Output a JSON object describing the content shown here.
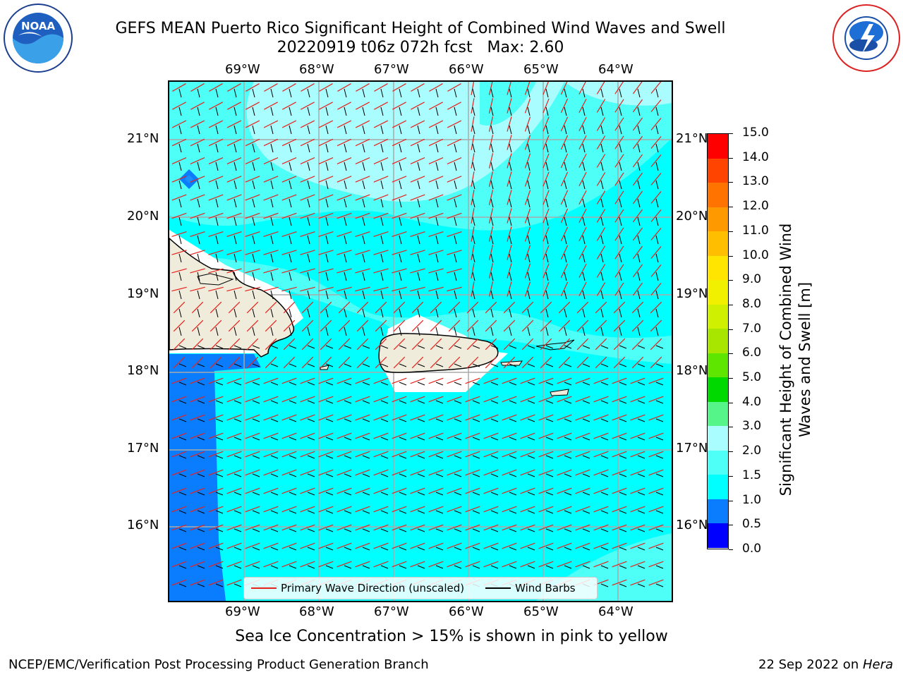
{
  "title": {
    "line1": "GEFS MEAN Puerto Rico Significant Height of Combined Wind Waves and Swell",
    "line2": "20220919 t06z 072h fcst   Max: 2.60"
  },
  "logos": {
    "left": "noaa-logo",
    "right": "nws-logo"
  },
  "map": {
    "lon_labels": [
      "69°W",
      "68°W",
      "67°W",
      "66°W",
      "65°W",
      "64°W"
    ],
    "lat_labels": [
      "21°N",
      "20°N",
      "19°N",
      "18°N",
      "17°N",
      "16°N"
    ],
    "fill_colors": {
      "band_0_5_1_0": "#0a7dff",
      "band_1_0_1_5": "#00ffff",
      "band_1_5_2_0": "#4dfff7",
      "band_2_0_3_0": "#aafdff",
      "land": "#efecdc",
      "white": "#ffffff",
      "wave_arrow": "#e8201a",
      "wind_barb": "#000000"
    }
  },
  "legend": {
    "wave_label": "Primary Wave Direction (unscaled)",
    "barb_label": "Wind Barbs"
  },
  "colorbar": {
    "title": "Significant Height of Combined Wind Waves and Swell [m]",
    "levels": [
      "0.0",
      "0.5",
      "1.0",
      "1.5",
      "2.0",
      "3.0",
      "4.0",
      "5.0",
      "6.0",
      "7.0",
      "8.0",
      "9.0",
      "10.0",
      "11.0",
      "12.0",
      "13.0",
      "14.0",
      "15.0"
    ],
    "colors": [
      "#0000ff",
      "#0a7dff",
      "#00ffff",
      "#4dfff7",
      "#aafdff",
      "#55f58a",
      "#00d900",
      "#5ee600",
      "#a8e600",
      "#cff000",
      "#f0f000",
      "#ffe500",
      "#ffbf00",
      "#ff9900",
      "#ff7300",
      "#ff4400",
      "#ff0000"
    ]
  },
  "caption": "Sea Ice Concentration > 15% is shown in pink to yellow",
  "footer": {
    "left": "NCEP/EMC/Verification Post Processing Product Generation Branch",
    "right_date": "22 Sep 2022 on ",
    "right_host": "Hera"
  }
}
